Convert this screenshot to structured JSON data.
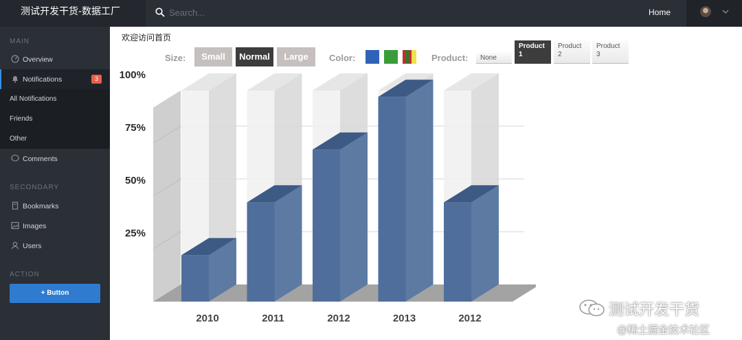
{
  "header": {
    "brand": "测试开发干货-数据工厂",
    "search_placeholder": "Search...",
    "home": "Home"
  },
  "sidebar": {
    "main_title": "MAIN",
    "overview": "Overview",
    "notifications": "Notifications",
    "notifications_badge": "3",
    "sub": [
      "All Notifications",
      "Friends",
      "Other"
    ],
    "comments": "Comments",
    "secondary_title": "SECONDARY",
    "bookmarks": "Bookmarks",
    "images": "Images",
    "users": "Users",
    "action_title": "ACTION",
    "action_button": "+ Button"
  },
  "main": {
    "welcome": "欢迎访问首页",
    "size_label": "Size:",
    "sizes": [
      "Small",
      "Normal",
      "Large"
    ],
    "size_selected": "Normal",
    "color_label": "Color:",
    "colors": [
      "#2e63b8",
      "#3a9b3a",
      "striped"
    ],
    "product_label": "Product:",
    "product_none": "None",
    "products": [
      [
        "Product",
        "1"
      ],
      [
        "Product",
        "2"
      ],
      [
        "Product",
        "3"
      ]
    ],
    "product_selected": 0
  },
  "chart_data": {
    "type": "bar",
    "style": "3d",
    "categories": [
      "2010",
      "2011",
      "2012",
      "2013",
      "2012"
    ],
    "values": [
      22,
      47,
      72,
      97,
      47
    ],
    "yticks": [
      "25%",
      "50%",
      "75%",
      "100%"
    ],
    "ylim": [
      0,
      100
    ],
    "bar_color": "#4f6e9c",
    "grid": true
  },
  "watermark": {
    "line1": "测试开发干货",
    "line2": "@稀土掘金技术社区"
  }
}
